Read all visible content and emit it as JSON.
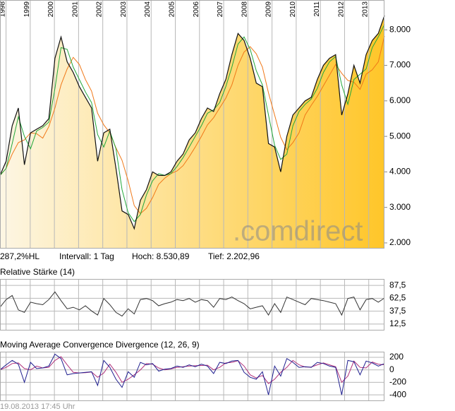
{
  "chart_data": [
    {
      "type": "line",
      "xlim": [
        1997.75,
        2013.65
      ],
      "xticks": [
        1998,
        1999,
        2000,
        2001,
        2002,
        2003,
        2004,
        2005,
        2006,
        2007,
        2008,
        2009,
        2010,
        2011,
        2012,
        2013
      ],
      "xtick_labels": true,
      "ylim": [
        1840,
        8840
      ],
      "yticks": [
        {
          "value": 2000,
          "label": "2.000"
        },
        {
          "value": 3000,
          "label": "3.000"
        },
        {
          "value": 4000,
          "label": "4.000"
        },
        {
          "value": 5000,
          "label": "5.000"
        },
        {
          "value": 6000,
          "label": "6.000"
        },
        {
          "value": 7000,
          "label": "7.000"
        },
        {
          "value": 8000,
          "label": "8.000"
        }
      ],
      "grid": [
        "x"
      ],
      "fill_gradient": [
        "#fdf6e4",
        "#ffc629"
      ],
      "series": [
        {
          "color": "#f07818",
          "values": [
            3900,
            4100,
            4500,
            4825,
            4900,
            5100,
            5075,
            4950,
            5275,
            5800,
            6450,
            6900,
            7225,
            7025,
            6600,
            6275,
            5650,
            5325,
            5100,
            4675,
            4325,
            3750,
            3050,
            2825,
            2975,
            3275,
            3650,
            3825,
            3950,
            4025,
            4175,
            4425,
            4700,
            5000,
            5325,
            5525,
            5800,
            6075,
            6450,
            7000,
            7375,
            7525,
            7325,
            6950,
            6225,
            5600,
            4975,
            4625,
            4825,
            5100,
            5600,
            5875,
            6125,
            6425,
            6725,
            7025,
            6775,
            6575,
            6525,
            6325,
            6750,
            6875,
            7100,
            7825
          ]
        },
        {
          "color": "#22a83a",
          "values": [
            3900,
            4100,
            4800,
            5550,
            5000,
            4650,
            5150,
            5250,
            5400,
            6350,
            7500,
            7450,
            6950,
            6600,
            6250,
            5950,
            5050,
            4700,
            5150,
            4650,
            3500,
            2850,
            2600,
            2800,
            3350,
            3750,
            3950,
            3900,
            3950,
            4150,
            4400,
            4700,
            5000,
            5300,
            5650,
            5750,
            5950,
            6400,
            6950,
            7600,
            7800,
            7450,
            6850,
            6450,
            5600,
            4750,
            4350,
            4500,
            5300,
            5700,
            5900,
            6050,
            6350,
            6800,
            7100,
            7250,
            6450,
            5900,
            6600,
            6750,
            6900,
            7500,
            7800,
            8150
          ]
        },
        {
          "color": "#111111",
          "fill": true,
          "values": [
            3900,
            4300,
            5300,
            5800,
            4200,
            5100,
            5200,
            5300,
            5500,
            7200,
            7800,
            7100,
            6800,
            6400,
            6100,
            5800,
            4300,
            5100,
            5200,
            4100,
            2900,
            2800,
            2400,
            3200,
            3500,
            4000,
            3900,
            3900,
            4000,
            4300,
            4500,
            4900,
            5100,
            5500,
            5800,
            5700,
            6200,
            6600,
            7300,
            7900,
            7700,
            7200,
            6500,
            6400,
            4800,
            4700,
            4000,
            5000,
            5600,
            5800,
            6000,
            6100,
            6600,
            7000,
            7200,
            7300,
            5600,
            6200,
            7000,
            6500,
            7300,
            7700,
            7900,
            8400
          ]
        }
      ]
    },
    {
      "type": "line",
      "title": "Relative Stärke (14)",
      "xlim": [
        1997.75,
        2013.65
      ],
      "xticks": [
        1998,
        1999,
        2000,
        2001,
        2002,
        2003,
        2004,
        2005,
        2006,
        2007,
        2008,
        2009,
        2010,
        2011,
        2012,
        2013
      ],
      "xtick_labels": false,
      "ylim": [
        0,
        100
      ],
      "yticks": [
        {
          "value": 12.5,
          "label": "12,5"
        },
        {
          "value": 37.5,
          "label": "37,5"
        },
        {
          "value": 62.5,
          "label": "62,5"
        },
        {
          "value": 87.5,
          "label": "87,5"
        }
      ],
      "grid": [
        "x",
        "y"
      ],
      "series": [
        {
          "color": "#333333",
          "values": [
            45,
            60,
            68,
            40,
            35,
            55,
            52,
            50,
            60,
            75,
            58,
            42,
            45,
            40,
            48,
            38,
            30,
            62,
            50,
            35,
            28,
            42,
            32,
            60,
            62,
            58,
            48,
            52,
            55,
            60,
            58,
            62,
            55,
            60,
            58,
            45,
            62,
            60,
            65,
            58,
            52,
            42,
            45,
            48,
            30,
            52,
            35,
            65,
            60,
            55,
            50,
            62,
            60,
            58,
            55,
            52,
            30,
            62,
            65,
            40,
            60,
            62,
            55,
            63
          ]
        }
      ]
    },
    {
      "type": "line",
      "title": "Moving Average Convergence Divergence (12, 26, 9)",
      "xlim": [
        1997.75,
        2013.65
      ],
      "xticks": [
        1998,
        1999,
        2000,
        2001,
        2002,
        2003,
        2004,
        2005,
        2006,
        2007,
        2008,
        2009,
        2010,
        2011,
        2012,
        2013
      ],
      "xtick_labels": false,
      "ylim": [
        -500,
        290
      ],
      "yticks": [
        -400,
        -200,
        0,
        200
      ],
      "grid": [
        "x",
        "y"
      ],
      "series": [
        {
          "color": "#b0307a",
          "values": [
            0,
            40,
            100,
            110,
            20,
            0,
            60,
            30,
            40,
            150,
            210,
            80,
            -40,
            -50,
            -45,
            -35,
            -120,
            -50,
            90,
            -40,
            -200,
            -150,
            -80,
            0,
            100,
            90,
            30,
            0,
            15,
            40,
            50,
            60,
            65,
            70,
            75,
            0,
            40,
            110,
            120,
            145,
            60,
            -80,
            -130,
            -90,
            -220,
            -150,
            -40,
            40,
            150,
            80,
            45,
            45,
            80,
            110,
            80,
            50,
            -200,
            -100,
            140,
            40,
            30,
            125,
            90,
            80
          ]
        },
        {
          "color": "#1f1f8f",
          "values": [
            0,
            80,
            150,
            90,
            -200,
            120,
            20,
            30,
            60,
            250,
            180,
            -80,
            -60,
            -50,
            -40,
            -30,
            -250,
            150,
            40,
            -150,
            -280,
            -30,
            -120,
            120,
            80,
            100,
            -20,
            10,
            20,
            60,
            40,
            80,
            50,
            90,
            60,
            -60,
            120,
            100,
            140,
            150,
            -40,
            -120,
            -150,
            -30,
            -400,
            60,
            -100,
            180,
            120,
            40,
            50,
            40,
            120,
            100,
            60,
            40,
            -400,
            150,
            130,
            -80,
            140,
            110,
            60,
            100
          ]
        }
      ]
    }
  ],
  "info": {
    "hl": "287,2%HL",
    "interval": "Intervall: 1 Tag",
    "high": "Hoch: 8.530,89",
    "low": "Tief: 2.202,96"
  },
  "watermark": ".comdirect",
  "footer": "19.08.2013 17:45 Uhr"
}
